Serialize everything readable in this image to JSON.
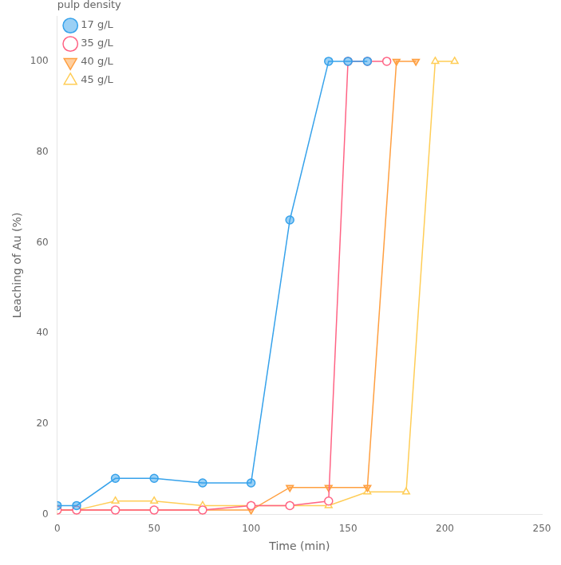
{
  "chart_data": {
    "type": "line",
    "xlabel": "Time (min)",
    "ylabel": "Leaching of Au (%)",
    "legend_title": "pulp density",
    "legend": "upper left",
    "grid": false,
    "xlim": [
      0,
      250
    ],
    "ylim": [
      0,
      110
    ],
    "xticks": [
      0,
      50,
      100,
      150,
      200,
      250
    ],
    "yticks": [
      0,
      20,
      40,
      60,
      80,
      100
    ],
    "series": [
      {
        "name": "17 g/L",
        "marker": "circle",
        "x": [
          0,
          10,
          30,
          50,
          75,
          100,
          120,
          140,
          150,
          160
        ],
        "values": [
          2,
          2,
          8,
          8,
          7,
          7,
          65,
          100,
          100,
          100
        ]
      },
      {
        "name": "35 g/L",
        "marker": "circle-open",
        "x": [
          0,
          10,
          30,
          50,
          75,
          100,
          120,
          140,
          150,
          160,
          170
        ],
        "values": [
          1,
          1,
          1,
          1,
          1,
          2,
          2,
          3,
          100,
          100,
          100
        ]
      },
      {
        "name": "40 g/L",
        "marker": "triangle-down",
        "x": [
          0,
          10,
          30,
          50,
          75,
          100,
          120,
          140,
          160,
          175,
          185
        ],
        "values": [
          1,
          1,
          1,
          1,
          1,
          1,
          6,
          6,
          6,
          100,
          100
        ]
      },
      {
        "name": "45 g/L",
        "marker": "triangle-up-open",
        "x": [
          0,
          10,
          30,
          50,
          75,
          100,
          120,
          140,
          160,
          180,
          195,
          205
        ],
        "values": [
          1,
          1,
          3,
          3,
          2,
          2,
          2,
          2,
          5,
          5,
          100,
          100
        ]
      }
    ]
  }
}
